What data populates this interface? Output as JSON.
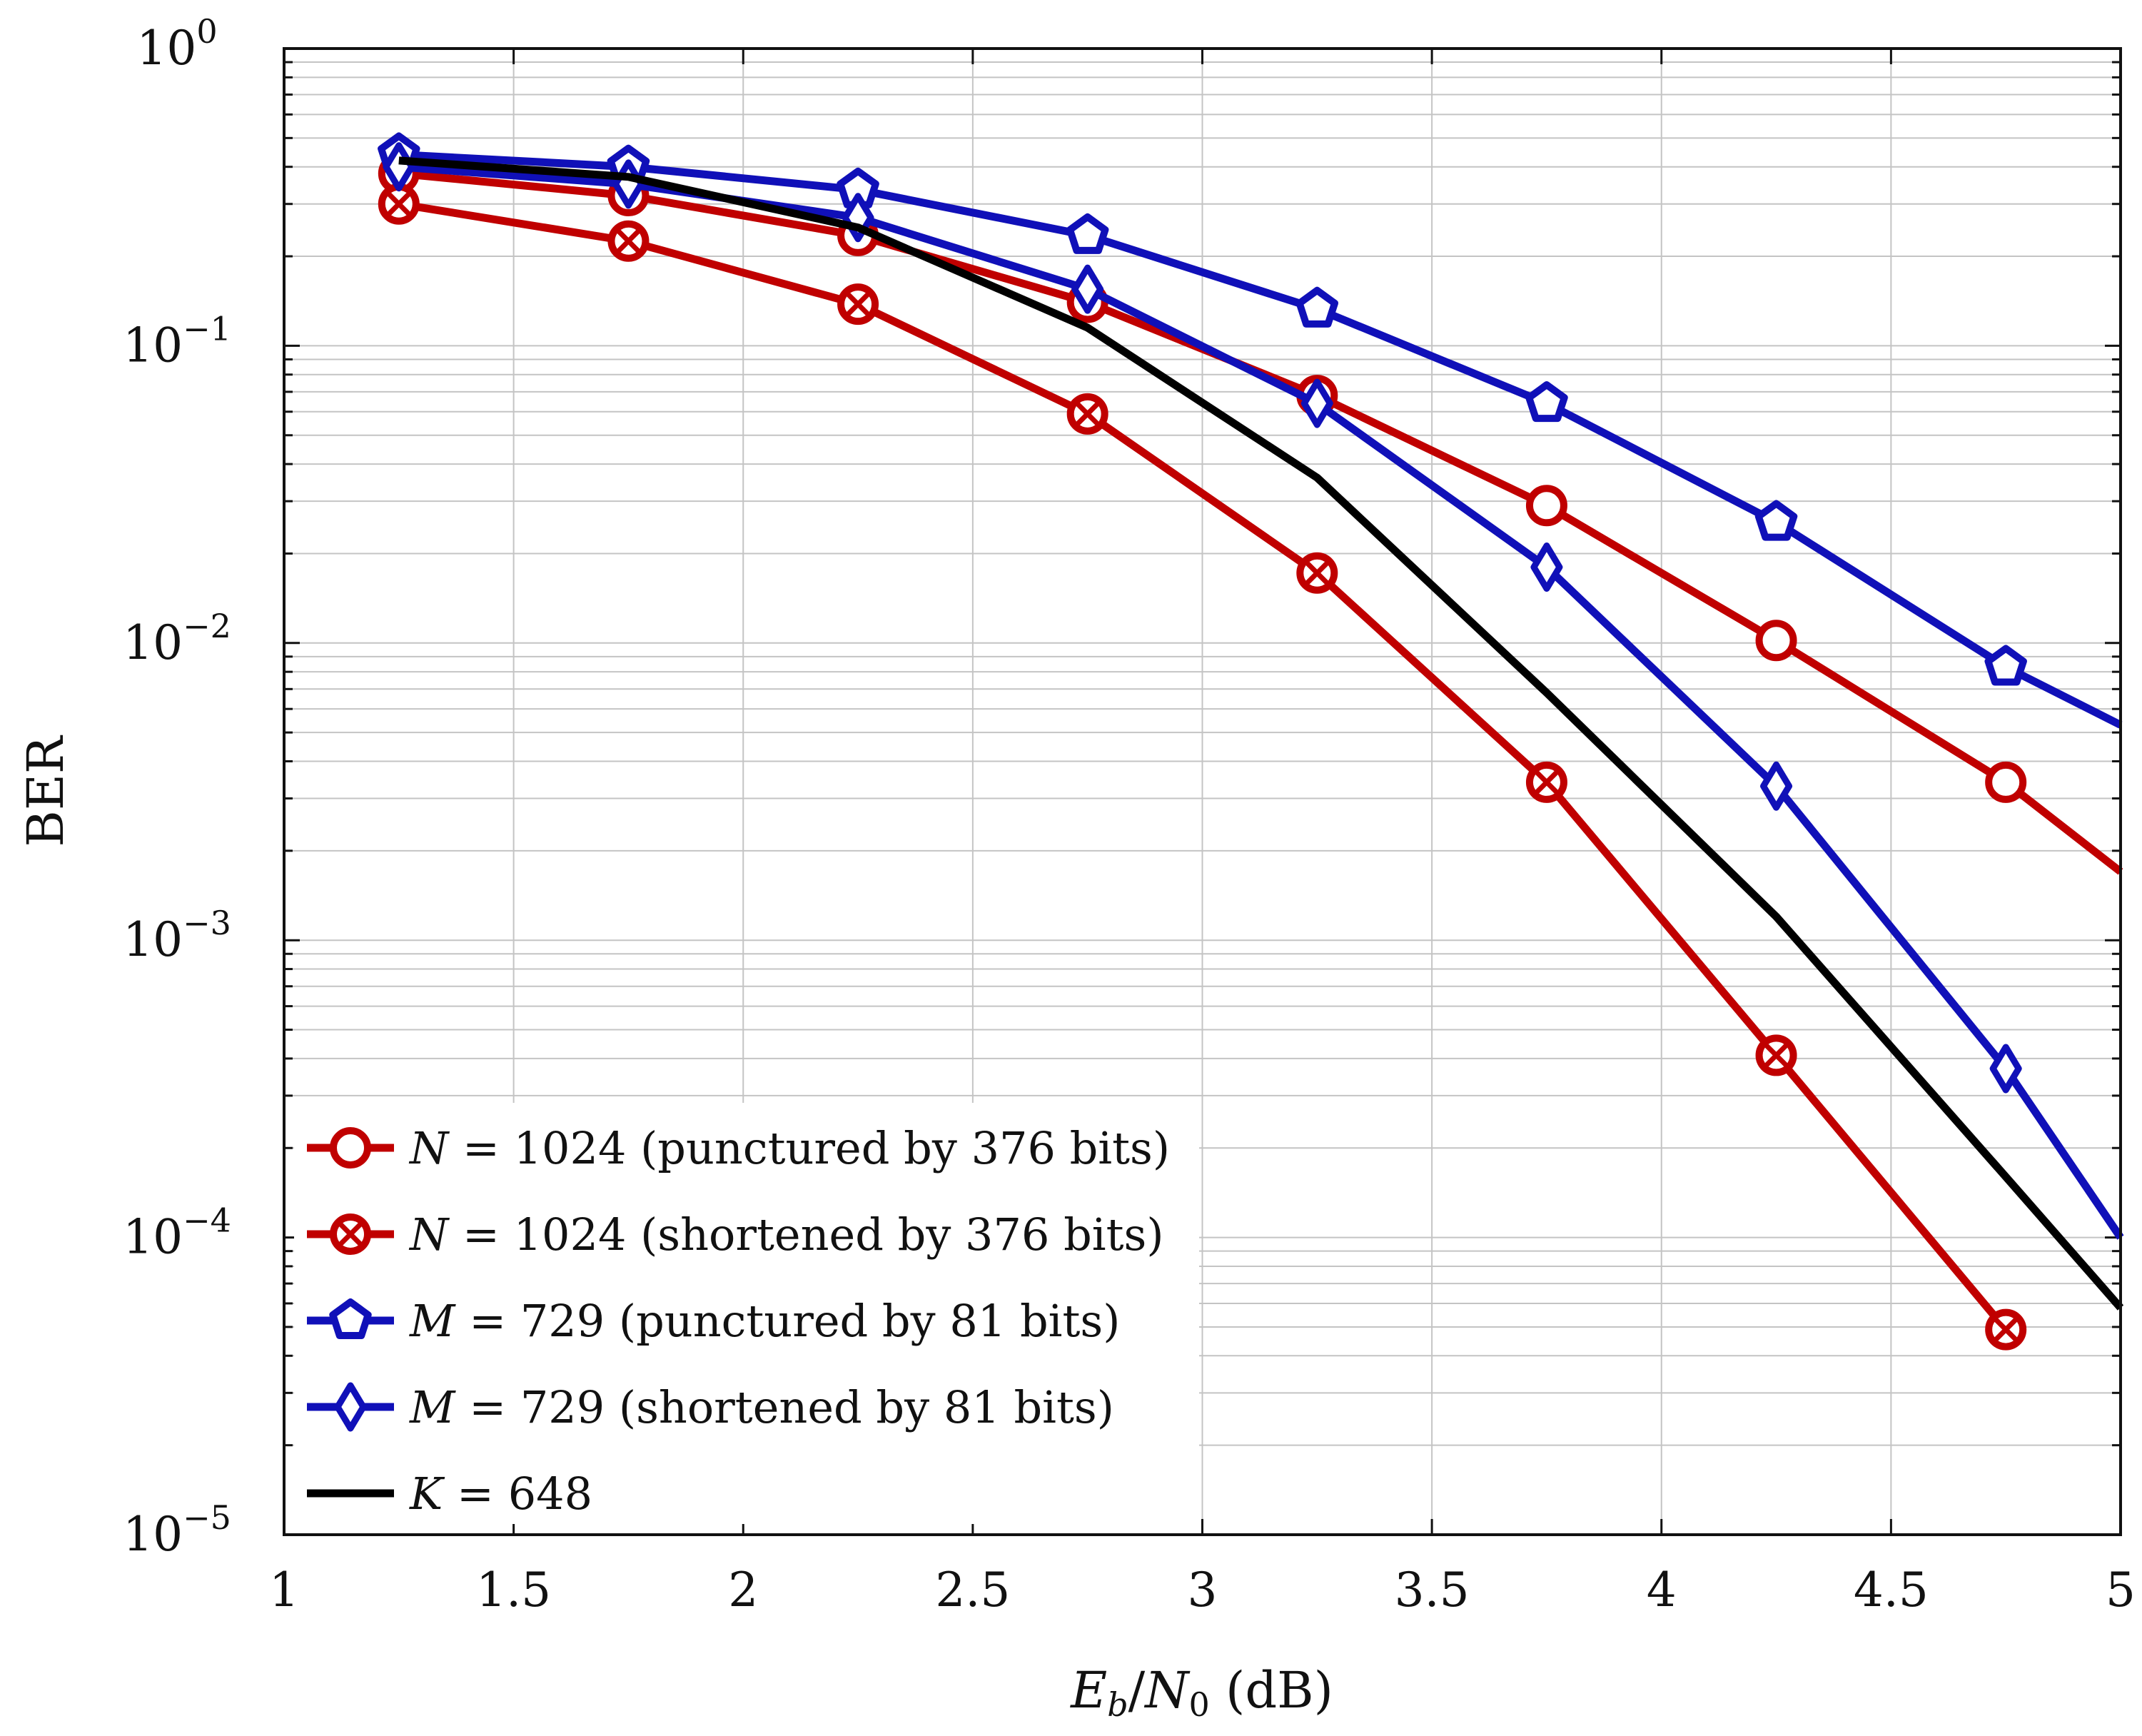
{
  "chart_data": {
    "type": "line",
    "title": "",
    "xlabel": {
      "var": "E",
      "var_sub": "b",
      "slash": "/",
      "var2": "N",
      "var2_sub": "0",
      "unit": " (dB)"
    },
    "ylabel": "BER",
    "xlim": [
      1,
      5
    ],
    "ylim": [
      1e-05,
      1
    ],
    "yscale": "log",
    "grid": true,
    "legend_position": "bottom-left",
    "x_ticks": [
      "1",
      "1.5",
      "2",
      "2.5",
      "3",
      "3.5",
      "4",
      "4.5",
      "5"
    ],
    "y_ticks": [
      {
        "base": "10",
        "exp": "0"
      },
      {
        "base": "10",
        "exp": "−1"
      },
      {
        "base": "10",
        "exp": "−2"
      },
      {
        "base": "10",
        "exp": "−3"
      },
      {
        "base": "10",
        "exp": "−4"
      },
      {
        "base": "10",
        "exp": "−5"
      }
    ],
    "series": [
      {
        "name": "N = 1024 (punctured by 376 bits)",
        "legend_var": "N",
        "legend_text": " = 1024 (punctured by 376 bits)",
        "color": "#c00000",
        "marker": "circle",
        "x": [
          1.25,
          1.75,
          2.25,
          2.75,
          3.25,
          3.75,
          4.25,
          4.75,
          5.0
        ],
        "y": [
          0.38,
          0.32,
          0.235,
          0.14,
          0.068,
          0.029,
          0.0102,
          0.0034,
          0.0017
        ]
      },
      {
        "name": "N = 1024 (shortened by 376 bits)",
        "legend_var": "N",
        "legend_text": " = 1024 (shortened by 376 bits)",
        "color": "#c00000",
        "marker": "circle-x",
        "x": [
          1.25,
          1.75,
          2.25,
          2.75,
          3.25,
          3.75,
          4.25,
          4.75
        ],
        "y": [
          0.3,
          0.225,
          0.138,
          0.059,
          0.0172,
          0.0034,
          0.00041,
          4.9e-05
        ]
      },
      {
        "name": "M = 729 (punctured by 81 bits)",
        "legend_var": "M",
        "legend_text": " = 729 (punctured by 81 bits)",
        "color": "#1010b8",
        "marker": "pentagon",
        "x": [
          1.25,
          1.75,
          2.25,
          2.75,
          3.25,
          3.75,
          4.25,
          4.75,
          5.0
        ],
        "y": [
          0.44,
          0.4,
          0.335,
          0.235,
          0.133,
          0.064,
          0.0255,
          0.0083,
          0.0053
        ]
      },
      {
        "name": "M = 729 (shortened by 81 bits)",
        "legend_var": "M",
        "legend_text": " = 729 (shortened by 81 bits)",
        "color": "#1010b8",
        "marker": "diamond",
        "x": [
          1.25,
          1.75,
          2.25,
          2.75,
          3.25,
          3.75,
          4.25,
          4.75,
          5.0
        ],
        "y": [
          0.4,
          0.35,
          0.27,
          0.155,
          0.064,
          0.018,
          0.0033,
          0.00037,
          0.0001
        ]
      },
      {
        "name": "K = 648",
        "legend_var": "K",
        "legend_text": " = 648",
        "color": "#000000",
        "marker": "none",
        "x": [
          1.25,
          1.75,
          2.25,
          2.75,
          3.25,
          3.75,
          4.25,
          4.75,
          5.0
        ],
        "y": [
          0.42,
          0.37,
          0.25,
          0.115,
          0.036,
          0.0068,
          0.0012,
          0.00016,
          5.8e-05
        ]
      }
    ]
  }
}
